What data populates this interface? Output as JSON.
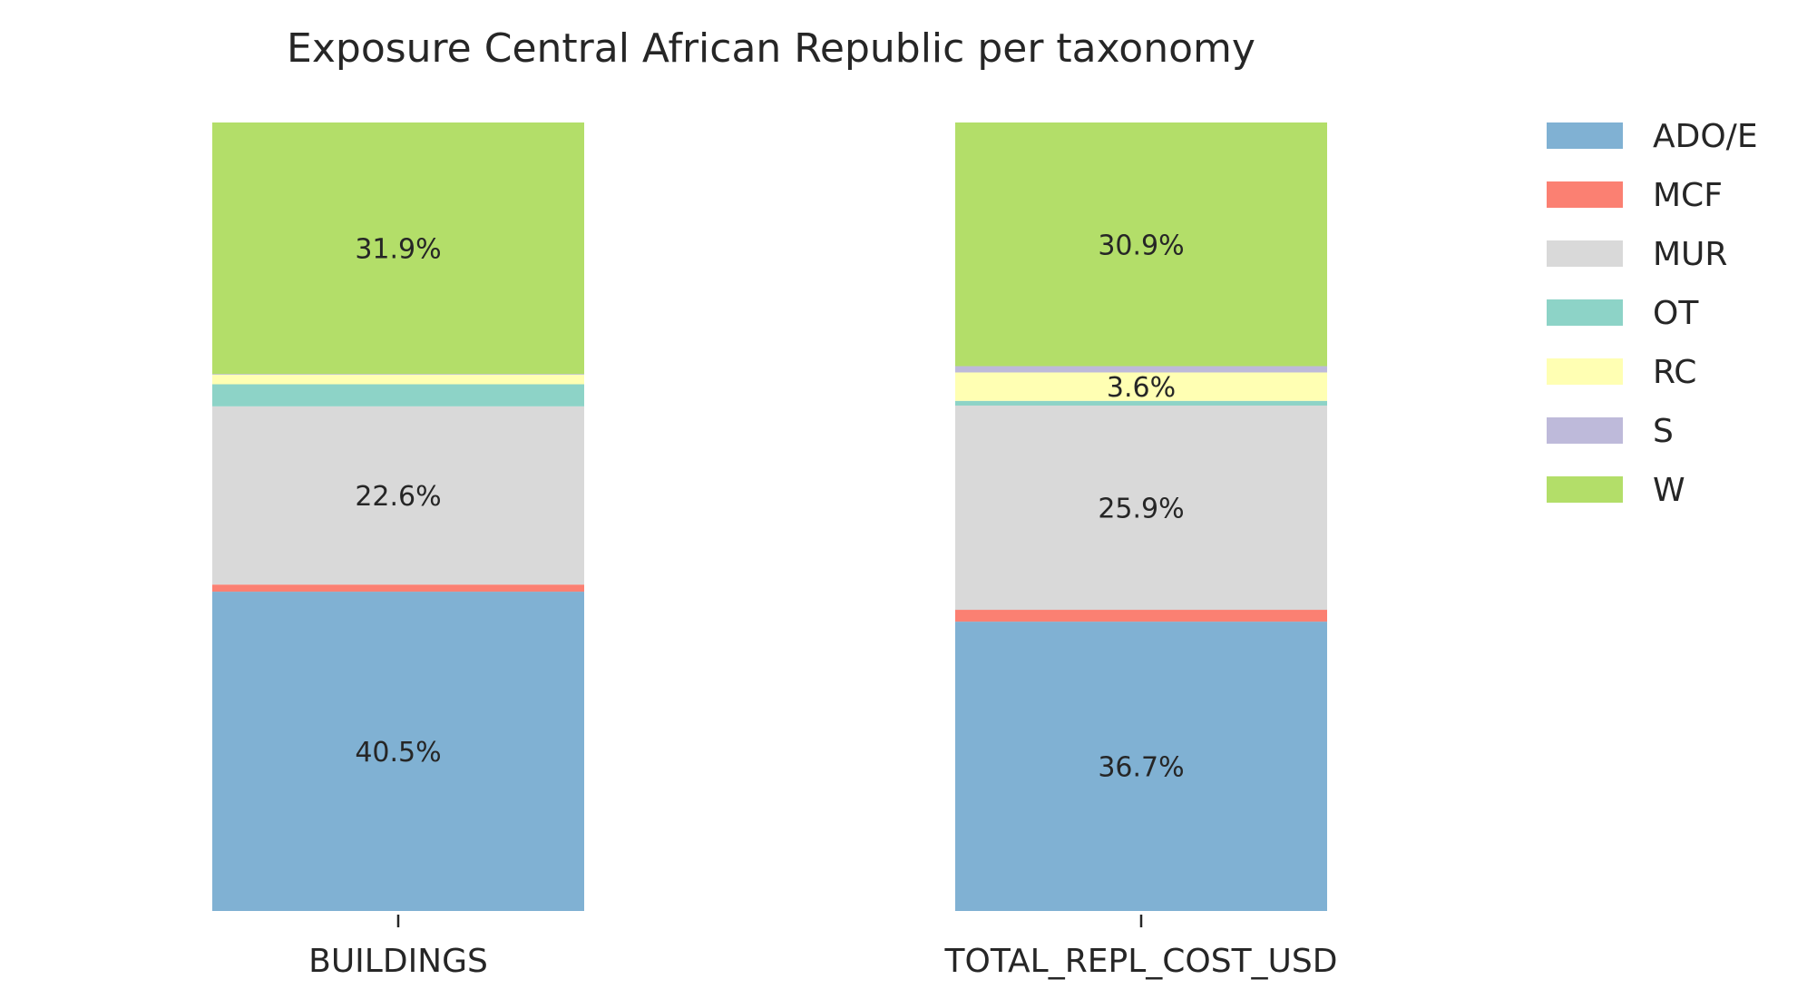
{
  "chart_data": {
    "type": "bar",
    "stacked": true,
    "normalized_to_percent": true,
    "title": "Exposure Central African Republic per taxonomy",
    "categories": [
      "BUILDINGS",
      "TOTAL_REPL_COST_USD"
    ],
    "ylim": [
      0,
      100
    ],
    "grid": false,
    "legend_position": "right",
    "series": [
      {
        "name": "ADO/E",
        "color": "#80b1d3",
        "values": [
          40.5,
          36.7
        ],
        "labels": [
          "40.5%",
          "36.7%"
        ]
      },
      {
        "name": "MCF",
        "color": "#fb8072",
        "values": [
          0.9,
          1.5
        ],
        "labels": [
          "",
          ""
        ]
      },
      {
        "name": "MUR",
        "color": "#d9d9d9",
        "values": [
          22.6,
          25.9
        ],
        "labels": [
          "22.6%",
          "25.9%"
        ]
      },
      {
        "name": "OT",
        "color": "#8dd3c7",
        "values": [
          2.8,
          0.6
        ],
        "labels": [
          "",
          ""
        ]
      },
      {
        "name": "RC",
        "color": "#ffffb3",
        "values": [
          1.2,
          3.6
        ],
        "labels": [
          "",
          "3.6%"
        ]
      },
      {
        "name": "S",
        "color": "#bebada",
        "values": [
          0.1,
          0.8
        ],
        "labels": [
          "",
          ""
        ]
      },
      {
        "name": "W",
        "color": "#b3de69",
        "values": [
          31.9,
          30.9
        ],
        "labels": [
          "31.9%",
          "30.9%"
        ]
      }
    ]
  }
}
